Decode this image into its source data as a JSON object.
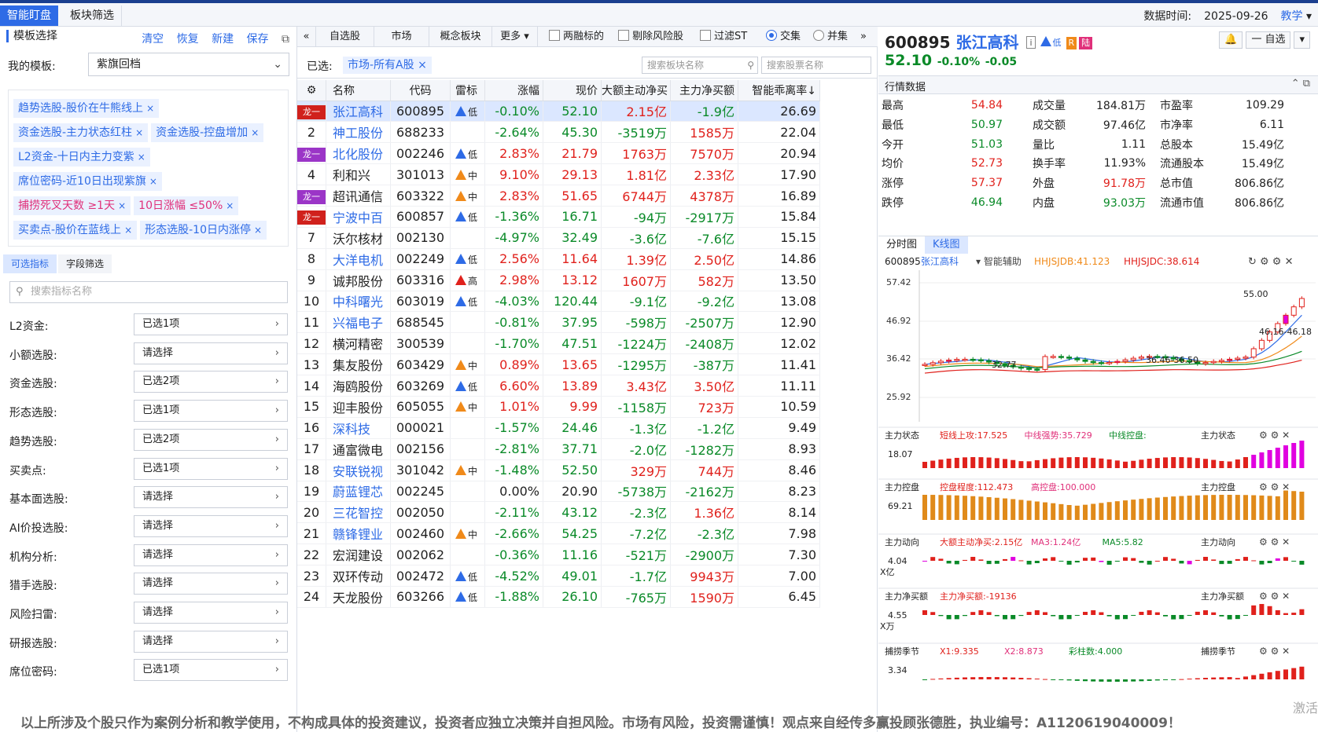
{
  "topbar": {
    "tabs": [
      "智能盯盘",
      "板块筛选"
    ],
    "data_time_label": "数据时间:",
    "data_time": "2025-09-26",
    "teach": "教学"
  },
  "left": {
    "title": "模板选择",
    "actions": [
      "清空",
      "恢复",
      "新建",
      "保存"
    ],
    "my_template_label": "我的模板:",
    "my_template_value": "紫旗回档",
    "tags": [
      {
        "text": "趋势选股-股价在牛熊线上",
        "pink": false
      },
      {
        "text": "资金选股-主力状态红柱",
        "pink": false
      },
      {
        "text": "资金选股-控盘增加",
        "pink": false
      },
      {
        "text": "L2资金-十日内主力变紫",
        "pink": false
      },
      {
        "text": "席位密码-近10日出现紫旗",
        "pink": false
      },
      {
        "text": "捕捞死叉天数 ≥1天",
        "pink": true
      },
      {
        "text": "10日涨幅 ≤50%",
        "pink": true
      },
      {
        "text": "买卖点-股价在蓝线上",
        "pink": false
      },
      {
        "text": "形态选股-10日内涨停",
        "pink": false
      }
    ],
    "subtabs": [
      "可选指标",
      "字段筛选"
    ],
    "search_placeholder": "搜索指标名称",
    "filters": [
      {
        "k": "L2资金:",
        "v": "已选1项"
      },
      {
        "k": "小额选股:",
        "v": "请选择"
      },
      {
        "k": "资金选股:",
        "v": "已选2项"
      },
      {
        "k": "形态选股:",
        "v": "已选1项"
      },
      {
        "k": "趋势选股:",
        "v": "已选2项"
      },
      {
        "k": "买卖点:",
        "v": "已选1项"
      },
      {
        "k": "基本面选股:",
        "v": "请选择"
      },
      {
        "k": "AI价投选股:",
        "v": "请选择"
      },
      {
        "k": "机构分析:",
        "v": "请选择"
      },
      {
        "k": "猎手选股:",
        "v": "请选择"
      },
      {
        "k": "风险扫雷:",
        "v": "请选择"
      },
      {
        "k": "研报选股:",
        "v": "请选择"
      },
      {
        "k": "席位密码:",
        "v": "已选1项"
      }
    ]
  },
  "mid": {
    "tabs": [
      "自选股",
      "市场",
      "概念板块",
      "更多"
    ],
    "checks": [
      "两融标的",
      "剔除风险股",
      "过滤ST"
    ],
    "radios": [
      "交集",
      "并集"
    ],
    "selected_label": "已选:",
    "selected_chip": "市场-所有A股",
    "search_sector": "搜索板块名称",
    "search_stock": "搜索股票名称",
    "columns": [
      "",
      "名称",
      "代码",
      "雷标",
      "涨幅",
      "现价",
      "大额主动净买",
      "主力净买额",
      "智能乖离率↓"
    ],
    "rows": [
      {
        "i": "龙一",
        "dragon": "red",
        "n": "张江高科",
        "nb": true,
        "c": "600895",
        "lw": "低",
        "lt": "b",
        "z": "-0.10%",
        "p": "52.10",
        "d": "2.15亿",
        "m": "-1.9亿",
        "s": "26.69"
      },
      {
        "i": "2",
        "dragon": "",
        "n": "神工股份",
        "nb": true,
        "c": "688233",
        "lw": "",
        "lt": "",
        "z": "-2.64%",
        "p": "45.30",
        "d": "-3519万",
        "m": "1585万",
        "s": "22.04"
      },
      {
        "i": "龙一",
        "dragon": "purple",
        "n": "北化股份",
        "nb": true,
        "c": "002246",
        "lw": "低",
        "lt": "b",
        "z": "2.83%",
        "p": "21.79",
        "d": "1763万",
        "m": "7570万",
        "s": "20.94"
      },
      {
        "i": "4",
        "dragon": "",
        "n": "利和兴",
        "nb": false,
        "c": "301013",
        "lw": "中",
        "lt": "o",
        "z": "9.10%",
        "p": "29.13",
        "d": "1.81亿",
        "m": "2.33亿",
        "s": "17.90"
      },
      {
        "i": "龙一",
        "dragon": "purple",
        "n": "超讯通信",
        "nb": false,
        "c": "603322",
        "lw": "中",
        "lt": "o",
        "z": "2.83%",
        "p": "51.65",
        "d": "6744万",
        "m": "4378万",
        "s": "16.89"
      },
      {
        "i": "龙一",
        "dragon": "red",
        "n": "宁波中百",
        "nb": true,
        "c": "600857",
        "lw": "低",
        "lt": "b",
        "z": "-1.36%",
        "p": "16.71",
        "d": "-94万",
        "m": "-2917万",
        "s": "15.84"
      },
      {
        "i": "7",
        "dragon": "",
        "n": "沃尔核材",
        "nb": false,
        "c": "002130",
        "lw": "",
        "lt": "",
        "z": "-4.97%",
        "p": "32.49",
        "d": "-3.6亿",
        "m": "-7.6亿",
        "s": "15.15"
      },
      {
        "i": "8",
        "dragon": "",
        "n": "大洋电机",
        "nb": true,
        "c": "002249",
        "lw": "低",
        "lt": "b",
        "z": "2.56%",
        "p": "11.64",
        "d": "1.39亿",
        "m": "2.50亿",
        "s": "14.86"
      },
      {
        "i": "9",
        "dragon": "",
        "n": "诚邦股份",
        "nb": false,
        "c": "603316",
        "lw": "高",
        "lt": "r",
        "z": "2.98%",
        "p": "13.12",
        "d": "1607万",
        "m": "582万",
        "s": "13.50"
      },
      {
        "i": "10",
        "dragon": "",
        "n": "中科曙光",
        "nb": true,
        "c": "603019",
        "lw": "低",
        "lt": "b",
        "z": "-4.03%",
        "p": "120.44",
        "d": "-9.1亿",
        "m": "-9.2亿",
        "s": "13.08"
      },
      {
        "i": "11",
        "dragon": "",
        "n": "兴福电子",
        "nb": true,
        "c": "688545",
        "lw": "",
        "lt": "",
        "z": "-0.81%",
        "p": "37.95",
        "d": "-598万",
        "m": "-2507万",
        "s": "12.90"
      },
      {
        "i": "12",
        "dragon": "",
        "n": "横河精密",
        "nb": false,
        "c": "300539",
        "lw": "",
        "lt": "",
        "z": "-1.70%",
        "p": "47.51",
        "d": "-1224万",
        "m": "-2408万",
        "s": "12.02"
      },
      {
        "i": "13",
        "dragon": "",
        "n": "集友股份",
        "nb": false,
        "c": "603429",
        "lw": "中",
        "lt": "o",
        "z": "0.89%",
        "p": "13.65",
        "d": "-1295万",
        "m": "-387万",
        "s": "11.41"
      },
      {
        "i": "14",
        "dragon": "",
        "n": "海鸥股份",
        "nb": false,
        "c": "603269",
        "lw": "低",
        "lt": "b",
        "z": "6.60%",
        "p": "13.89",
        "d": "3.43亿",
        "m": "3.50亿",
        "s": "11.11"
      },
      {
        "i": "15",
        "dragon": "",
        "n": "迎丰股份",
        "nb": false,
        "c": "605055",
        "lw": "中",
        "lt": "o",
        "z": "1.01%",
        "p": "9.99",
        "d": "-1158万",
        "m": "723万",
        "s": "10.59"
      },
      {
        "i": "16",
        "dragon": "",
        "n": "深科技",
        "nb": true,
        "c": "000021",
        "lw": "",
        "lt": "",
        "z": "-1.57%",
        "p": "24.46",
        "d": "-1.3亿",
        "m": "-1.2亿",
        "s": "9.49"
      },
      {
        "i": "17",
        "dragon": "",
        "n": "通富微电",
        "nb": false,
        "c": "002156",
        "lw": "",
        "lt": "",
        "z": "-2.81%",
        "p": "37.71",
        "d": "-2.0亿",
        "m": "-1282万",
        "s": "8.93"
      },
      {
        "i": "18",
        "dragon": "",
        "n": "安联锐视",
        "nb": true,
        "c": "301042",
        "lw": "中",
        "lt": "o",
        "z": "-1.48%",
        "p": "52.50",
        "d": "329万",
        "m": "744万",
        "s": "8.46"
      },
      {
        "i": "19",
        "dragon": "",
        "n": "蔚蓝锂芯",
        "nb": true,
        "c": "002245",
        "lw": "",
        "lt": "",
        "z": "0.00%",
        "p": "20.90",
        "d": "-5738万",
        "m": "-2162万",
        "s": "8.23"
      },
      {
        "i": "20",
        "dragon": "",
        "n": "三花智控",
        "nb": true,
        "c": "002050",
        "lw": "",
        "lt": "",
        "z": "-2.11%",
        "p": "43.12",
        "d": "-2.3亿",
        "m": "1.36亿",
        "s": "8.14"
      },
      {
        "i": "21",
        "dragon": "",
        "n": "赣锋锂业",
        "nb": true,
        "c": "002460",
        "lw": "中",
        "lt": "o",
        "z": "-2.66%",
        "p": "54.25",
        "d": "-7.2亿",
        "m": "-2.3亿",
        "s": "7.98"
      },
      {
        "i": "22",
        "dragon": "",
        "n": "宏润建设",
        "nb": false,
        "c": "002062",
        "lw": "",
        "lt": "",
        "z": "-0.36%",
        "p": "11.16",
        "d": "-521万",
        "m": "-2900万",
        "s": "7.30"
      },
      {
        "i": "23",
        "dragon": "",
        "n": "双环传动",
        "nb": false,
        "c": "002472",
        "lw": "低",
        "lt": "b",
        "z": "-4.52%",
        "p": "49.01",
        "d": "-1.7亿",
        "m": "9943万",
        "s": "7.00"
      },
      {
        "i": "24",
        "dragon": "",
        "n": "天龙股份",
        "nb": false,
        "c": "603266",
        "lw": "低",
        "lt": "b",
        "z": "-1.88%",
        "p": "26.10",
        "d": "-765万",
        "m": "1590万",
        "s": "6.45"
      }
    ]
  },
  "right": {
    "code": "600895",
    "name": "张江高科",
    "badges": [
      "i",
      "低",
      "R",
      "陆"
    ],
    "price": "52.10",
    "pct": "-0.10%",
    "chg": "-0.05",
    "add_watch": "一 自选",
    "quote_title": "行情数据",
    "quote": [
      [
        "最高",
        "54.84",
        "成交量",
        "184.81万",
        "市盈率",
        "109.29"
      ],
      [
        "最低",
        "50.97",
        "成交额",
        "97.46亿",
        "市净率",
        "6.11"
      ],
      [
        "今开",
        "51.03",
        "量比",
        "1.11",
        "总股本",
        "15.49亿"
      ],
      [
        "均价",
        "52.73",
        "换手率",
        "11.93%",
        "流通股本",
        "15.49亿"
      ],
      [
        "涨停",
        "57.37",
        "外盘",
        "91.78万",
        "总市值",
        "806.86亿"
      ],
      [
        "跌停",
        "46.94",
        "内盘",
        "93.03万",
        "流通市值",
        "806.86亿"
      ]
    ],
    "chart_tabs": [
      "分时图",
      "K线图"
    ],
    "kline_header": {
      "code": "600895",
      "name": "张江高科",
      "aux": "智能辅助",
      "j1": "HHJSJDB:41.123",
      "j2": "HHJSJDC:38.614"
    },
    "kline_axis": [
      "57.42",
      "46.92",
      "36.42",
      "25.92"
    ],
    "kline_labels": {
      "high": "55.00",
      "ma": "46.16-46.18",
      "low1": "32.77",
      "low2": "36.46-36.50"
    },
    "indicators": [
      {
        "name": "主力状态",
        "items": [
          "短线上攻:17.525",
          "中线强势:35.729",
          "中线控盘:"
        ],
        "axis": "18.07",
        "unit": ""
      },
      {
        "name": "主力控盘",
        "items": [
          "控盘程度:112.473",
          "高控盘:100.000"
        ],
        "axis": "69.21",
        "unit": ""
      },
      {
        "name": "主力动向",
        "items": [
          "大额主动净买:2.15亿",
          "MA3:1.24亿",
          "MA5:5.82"
        ],
        "axis": "4.04",
        "unit": "X亿"
      },
      {
        "name": "主力净买额",
        "items": [
          "主力净买额:-19136"
        ],
        "axis": "4.55",
        "unit": "X万"
      },
      {
        "name": "捕捞季节",
        "items": [
          "X1:9.335",
          "X2:8.873",
          "彩柱数:4.000"
        ],
        "axis": "3.34",
        "unit": ""
      }
    ]
  },
  "chart_data": {
    "type": "bar",
    "title": "",
    "categories": [
      "张江高科",
      "神工股份",
      "北化股份",
      "利和兴",
      "超讯通信",
      "宁波中百",
      "沃尔核材",
      "大洋电机",
      "诚邦股份",
      "中科曙光",
      "兴福电子",
      "横河精密",
      "集友股份",
      "海鸥股份",
      "迎丰股份",
      "深科技",
      "通富微电",
      "安联锐视",
      "蔚蓝锂芯",
      "三花智控",
      "赣锋锂业",
      "宏润建设",
      "双环传动",
      "天龙股份"
    ],
    "series": [
      {
        "name": "智能乖离率",
        "values": [
          26.69,
          22.04,
          20.94,
          17.9,
          16.89,
          15.84,
          15.15,
          14.86,
          13.5,
          13.08,
          12.9,
          12.02,
          11.41,
          11.11,
          10.59,
          9.49,
          8.93,
          8.46,
          8.23,
          8.14,
          7.98,
          7.3,
          7.0,
          6.45
        ]
      }
    ]
  },
  "footer": {
    "disclaimer": "以上所涉及个股只作为案例分析和教学使用，不构成具体的投资建议，投资者应独立决策并自担风险。市场有风险，投资需谨慎！观点来自经传多赢投顾张德胜，执业编号：A1120619040009！",
    "activate": "激活"
  }
}
